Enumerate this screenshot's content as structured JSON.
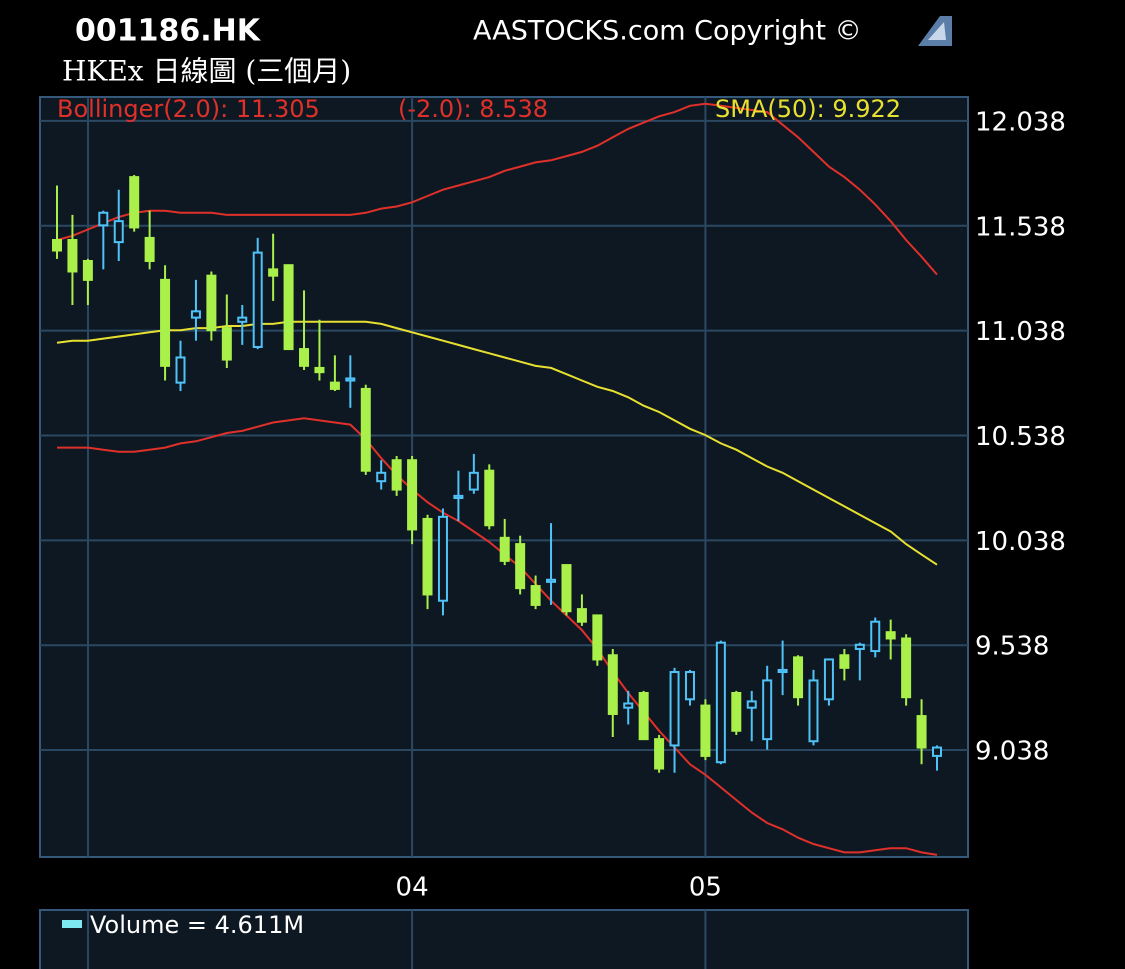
{
  "chart_data": {
    "type": "candlestick",
    "title": "001186.HK",
    "subtitle": "HKEx 日線圖 (三個月)",
    "copyright": "AASTOCKS.com Copyright ©",
    "categories": [
      null,
      null,
      null,
      null,
      null,
      null,
      null,
      null,
      null,
      null,
      null,
      null,
      null,
      null,
      null,
      null,
      null,
      null,
      null,
      null,
      null,
      null,
      null,
      "04",
      null,
      null,
      null,
      null,
      null,
      null,
      null,
      null,
      null,
      null,
      null,
      null,
      null,
      null,
      null,
      null,
      null,
      null,
      "05",
      null,
      null,
      null,
      null,
      null,
      null,
      null,
      null,
      null,
      null,
      null,
      null,
      null,
      null,
      null
    ],
    "open": [
      11.47,
      11.47,
      11.37,
      11.54,
      11.46,
      11.77,
      11.48,
      11.28,
      10.79,
      11.1,
      11.3,
      11.05,
      11.08,
      10.96,
      11.33,
      11.35,
      10.95,
      10.86,
      10.79,
      10.8,
      10.76,
      10.32,
      10.42,
      10.42,
      10.14,
      9.75,
      10.24,
      10.28,
      10.37,
      10.05,
      10.02,
      9.82,
      9.84,
      9.92,
      9.71,
      9.68,
      9.49,
      9.24,
      9.31,
      9.09,
      9.06,
      9.28,
      9.25,
      8.98,
      9.31,
      9.24,
      9.09,
      9.41,
      9.48,
      9.08,
      9.28,
      9.49,
      9.52,
      9.51,
      9.6,
      9.57,
      9.2,
      9.01
    ],
    "high": [
      11.73,
      11.59,
      11.38,
      11.61,
      11.71,
      11.78,
      11.61,
      11.35,
      10.99,
      11.28,
      11.32,
      11.21,
      11.16,
      11.48,
      11.5,
      11.35,
      11.23,
      11.09,
      10.92,
      10.92,
      10.78,
      10.42,
      10.44,
      10.44,
      10.16,
      10.19,
      10.37,
      10.45,
      10.4,
      10.14,
      10.06,
      9.87,
      10.12,
      9.92,
      9.78,
      9.68,
      9.52,
      9.32,
      9.32,
      9.11,
      9.43,
      9.42,
      9.28,
      9.56,
      9.32,
      9.32,
      9.44,
      9.56,
      9.49,
      9.42,
      9.47,
      9.52,
      9.55,
      9.67,
      9.66,
      9.59,
      9.28,
      9.06
    ],
    "low": [
      11.38,
      11.16,
      11.16,
      11.33,
      11.37,
      11.51,
      11.33,
      10.8,
      10.75,
      10.99,
      10.99,
      10.86,
      10.97,
      10.95,
      11.18,
      10.95,
      10.85,
      10.8,
      10.75,
      10.67,
      10.35,
      10.28,
      10.25,
      10.02,
      9.71,
      9.68,
      10.13,
      10.26,
      10.09,
      9.92,
      9.78,
      9.71,
      9.73,
      9.68,
      9.63,
      9.44,
      9.1,
      9.16,
      9.09,
      8.93,
      8.93,
      9.25,
      8.99,
      8.97,
      9.11,
      9.08,
      9.04,
      9.3,
      9.25,
      9.06,
      9.25,
      9.37,
      9.37,
      9.48,
      9.47,
      9.25,
      8.97,
      8.94
    ],
    "close": [
      11.42,
      11.32,
      11.28,
      11.6,
      11.56,
      11.53,
      11.37,
      10.87,
      10.91,
      11.13,
      11.04,
      10.9,
      11.1,
      11.41,
      11.3,
      10.95,
      10.87,
      10.84,
      10.76,
      10.81,
      10.37,
      10.36,
      10.28,
      10.09,
      9.78,
      10.15,
      10.25,
      10.36,
      10.11,
      9.94,
      9.81,
      9.73,
      9.85,
      9.7,
      9.65,
      9.47,
      9.21,
      9.26,
      9.09,
      8.95,
      9.41,
      9.41,
      9.01,
      9.55,
      9.13,
      9.27,
      9.37,
      9.42,
      9.29,
      9.37,
      9.47,
      9.43,
      9.54,
      9.65,
      9.57,
      9.29,
      9.05,
      9.05
    ],
    "up_color": "#4fc3f7",
    "down_color": "#aaf04a",
    "lines": [
      {
        "name": "Bollinger(2.0): 11.305",
        "color": "#e0302a",
        "values": [
          11.47,
          11.49,
          11.52,
          11.55,
          11.58,
          11.6,
          11.61,
          11.61,
          11.6,
          11.6,
          11.6,
          11.59,
          11.59,
          11.59,
          11.59,
          11.59,
          11.59,
          11.59,
          11.59,
          11.59,
          11.6,
          11.62,
          11.63,
          11.65,
          11.68,
          11.71,
          11.73,
          11.75,
          11.77,
          11.8,
          11.82,
          11.84,
          11.85,
          11.87,
          11.89,
          11.92,
          11.96,
          12.0,
          12.03,
          12.06,
          12.08,
          12.11,
          12.12,
          12.11,
          12.1,
          12.09,
          12.08,
          12.02,
          11.96,
          11.89,
          11.82,
          11.77,
          11.71,
          11.64,
          11.56,
          11.47,
          11.39,
          11.305
        ]
      },
      {
        "name": "(-2.0): 8.538",
        "color": "#e0302a",
        "values": [
          10.48,
          10.48,
          10.48,
          10.47,
          10.46,
          10.46,
          10.47,
          10.48,
          10.5,
          10.51,
          10.53,
          10.55,
          10.56,
          10.58,
          10.6,
          10.61,
          10.62,
          10.61,
          10.6,
          10.59,
          10.52,
          10.43,
          10.35,
          10.28,
          10.22,
          10.17,
          10.13,
          10.08,
          10.03,
          9.97,
          9.91,
          9.83,
          9.75,
          9.68,
          9.61,
          9.52,
          9.41,
          9.31,
          9.22,
          9.13,
          9.05,
          8.97,
          8.92,
          8.86,
          8.8,
          8.74,
          8.69,
          8.66,
          8.62,
          8.59,
          8.57,
          8.55,
          8.55,
          8.56,
          8.57,
          8.57,
          8.55,
          8.538
        ]
      },
      {
        "name": "SMA(50): 9.922",
        "color": "#e8e030",
        "values": [
          10.98,
          10.99,
          10.99,
          11.0,
          11.01,
          11.02,
          11.03,
          11.04,
          11.04,
          11.05,
          11.05,
          11.06,
          11.06,
          11.07,
          11.07,
          11.08,
          11.08,
          11.08,
          11.08,
          11.08,
          11.08,
          11.07,
          11.05,
          11.03,
          11.01,
          10.99,
          10.97,
          10.95,
          10.93,
          10.91,
          10.89,
          10.87,
          10.86,
          10.83,
          10.8,
          10.77,
          10.75,
          10.72,
          10.68,
          10.65,
          10.61,
          10.57,
          10.54,
          10.5,
          10.47,
          10.43,
          10.39,
          10.36,
          10.32,
          10.28,
          10.24,
          10.2,
          10.16,
          10.12,
          10.08,
          10.02,
          9.97,
          9.922
        ]
      }
    ],
    "ylim": [
      8.528,
      12.152
    ],
    "yticks": [
      9.038,
      9.538,
      10.038,
      10.538,
      11.038,
      11.538,
      12.038
    ],
    "grid": true,
    "volume_label": "Volume = 4.611M",
    "volume_color": "#7ee8f0"
  }
}
